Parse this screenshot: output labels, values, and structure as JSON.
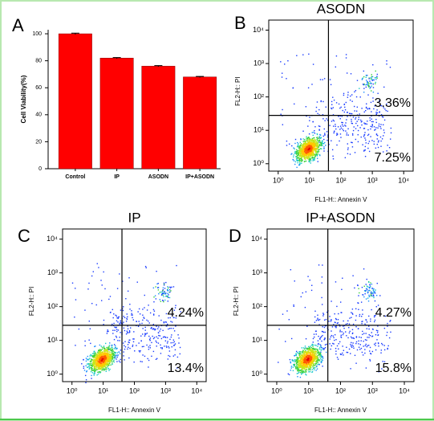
{
  "chart_data": [
    {
      "type": "bar",
      "label": "A",
      "categories": [
        "Control",
        "IP",
        "ASODN",
        "IP+ASODN"
      ],
      "values": [
        100,
        82,
        76,
        68
      ],
      "errors": [
        0.5,
        0.4,
        0.4,
        0.4
      ],
      "color": "#ff0000",
      "ylim": [
        0,
        103
      ],
      "yticks": [
        0,
        20,
        40,
        60,
        80,
        100
      ],
      "ylabel": "Cell Viability(%)"
    },
    {
      "type": "density",
      "label": "B",
      "title": "ASODN",
      "xlabel": "FL1-H:: Annexin V",
      "ylabel": "FL2-H:: PI",
      "log": true,
      "xlim": [
        0.5,
        20000
      ],
      "ylim": [
        0.6,
        20000
      ],
      "xticks": [
        {
          "value": 1,
          "label": "10⁰"
        },
        {
          "value": 10,
          "label": "10¹"
        },
        {
          "value": 100,
          "label": "10²"
        },
        {
          "value": 1000,
          "label": "10³"
        },
        {
          "value": 10000,
          "label": "10⁴"
        }
      ],
      "yticks": [
        {
          "value": 1,
          "label": "10⁰"
        },
        {
          "value": 10,
          "label": "10¹"
        },
        {
          "value": 100,
          "label": "10²"
        },
        {
          "value": 1000,
          "label": "10³"
        },
        {
          "value": 10000,
          "label": "10⁴"
        }
      ],
      "quadrant": {
        "x": 40,
        "y": 28
      },
      "annotations": [
        "3.36%",
        "7.25%"
      ]
    },
    {
      "type": "density",
      "label": "C",
      "title": "IP",
      "xlabel": "FL1-H:: Annexin V",
      "ylabel": "FL2-H:: PI",
      "log": true,
      "xlim": [
        0.5,
        20000
      ],
      "ylim": [
        0.6,
        20000
      ],
      "xticks": [
        {
          "value": 1,
          "label": "10⁰"
        },
        {
          "value": 10,
          "label": "10¹"
        },
        {
          "value": 100,
          "label": "10²"
        },
        {
          "value": 1000,
          "label": "10³"
        },
        {
          "value": 10000,
          "label": "10⁴"
        }
      ],
      "yticks": [
        {
          "value": 1,
          "label": "10⁰"
        },
        {
          "value": 10,
          "label": "10¹"
        },
        {
          "value": 100,
          "label": "10²"
        },
        {
          "value": 1000,
          "label": "10³"
        },
        {
          "value": 10000,
          "label": "10⁴"
        }
      ],
      "quadrant": {
        "x": 40,
        "y": 28
      },
      "annotations": [
        "4.24%",
        "13.4%"
      ]
    },
    {
      "type": "density",
      "label": "D",
      "title": "IP+ASODN",
      "xlabel": "FL1-H:: Annexin V",
      "ylabel": "FL2-H:: PI",
      "log": true,
      "xlim": [
        0.5,
        20000
      ],
      "ylim": [
        0.6,
        20000
      ],
      "xticks": [
        {
          "value": 1,
          "label": "10⁰"
        },
        {
          "value": 10,
          "label": "10¹"
        },
        {
          "value": 100,
          "label": "10²"
        },
        {
          "value": 1000,
          "label": "10³"
        },
        {
          "value": 10000,
          "label": "10⁴"
        }
      ],
      "yticks": [
        {
          "value": 1,
          "label": "10⁰"
        },
        {
          "value": 10,
          "label": "10¹"
        },
        {
          "value": 100,
          "label": "10²"
        },
        {
          "value": 1000,
          "label": "10³"
        },
        {
          "value": 10000,
          "label": "10⁴"
        }
      ],
      "quadrant": {
        "x": 40,
        "y": 28
      },
      "annotations": [
        "4.27%",
        "15.8%"
      ]
    }
  ]
}
